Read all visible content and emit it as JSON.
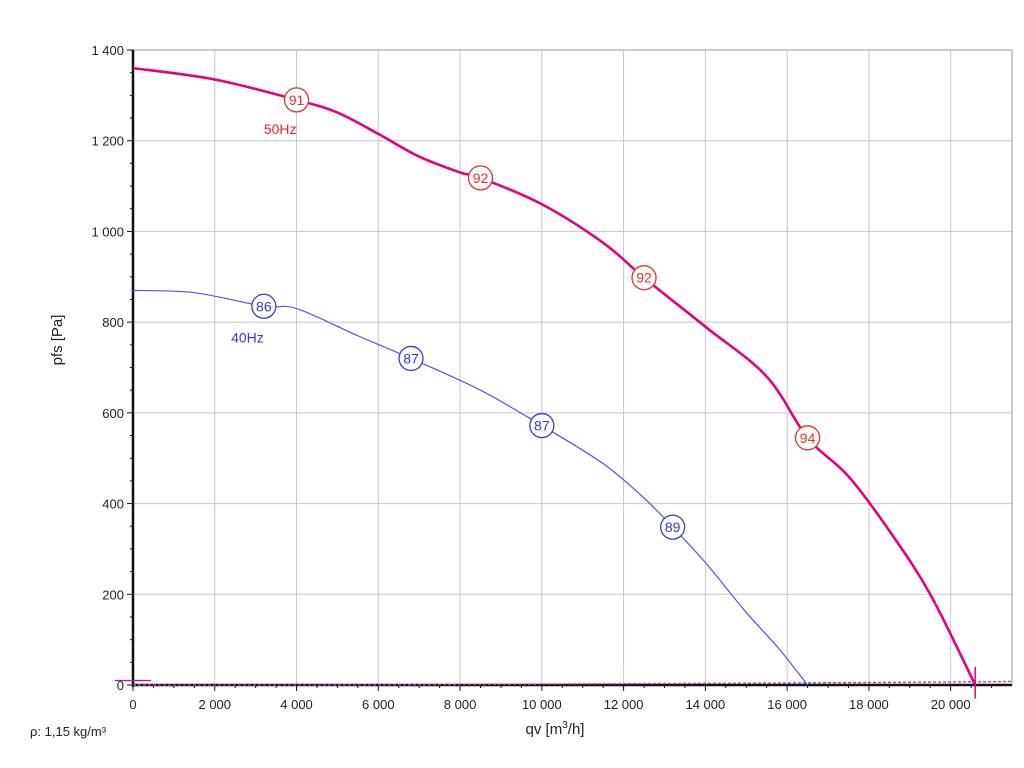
{
  "footer": {
    "density": "ρ: 1,15 kg/m³"
  },
  "chart_data": {
    "type": "line",
    "xlabel_prefix": "qv [m",
    "xlabel_sup": "3",
    "xlabel_suffix": "/h]",
    "ylabel": "pfs [Pa]",
    "xlim": [
      0,
      21500
    ],
    "ylim": [
      0,
      1400
    ],
    "xticks": [
      0,
      2000,
      4000,
      6000,
      8000,
      10000,
      12000,
      14000,
      16000,
      18000,
      20000
    ],
    "xtick_labels": [
      "0",
      "2 000",
      "4 000",
      "6 000",
      "8 000",
      "10 000",
      "12 000",
      "14 000",
      "16 000",
      "18 000",
      "20 000"
    ],
    "yticks": [
      0,
      200,
      400,
      600,
      800,
      1000,
      1200,
      1400
    ],
    "ytick_labels": [
      "0",
      "200",
      "400",
      "600",
      "800",
      "1 000",
      "1 200",
      "1 400"
    ],
    "grid": true,
    "series": [
      {
        "name": "50Hz",
        "color": "#e6007e",
        "x": [
          0,
          2000,
          4000,
          5000,
          6000,
          7000,
          8000,
          8500,
          10000,
          11500,
          12500,
          14000,
          15500,
          16500,
          17500,
          18500,
          19500,
          20600
        ],
        "y": [
          1360,
          1335,
          1290,
          1262,
          1215,
          1165,
          1130,
          1118,
          1060,
          975,
          898,
          790,
          680,
          545,
          460,
          340,
          200,
          0
        ],
        "markers": [
          {
            "x": 4000,
            "y": 1290,
            "label": "91"
          },
          {
            "x": 8500,
            "y": 1118,
            "label": "92"
          },
          {
            "x": 12500,
            "y": 898,
            "label": "92"
          },
          {
            "x": 16500,
            "y": 545,
            "label": "94"
          }
        ]
      },
      {
        "name": "40Hz",
        "color": "#5555dd",
        "x": [
          0,
          1500,
          3200,
          4000,
          5500,
          6800,
          8500,
          10000,
          11500,
          12500,
          13200,
          14000,
          15000,
          15800,
          16500
        ],
        "y": [
          870,
          865,
          835,
          830,
          770,
          720,
          650,
          572,
          488,
          412,
          348,
          270,
          160,
          80,
          0
        ],
        "markers": [
          {
            "x": 3200,
            "y": 835,
            "label": "86"
          },
          {
            "x": 6800,
            "y": 720,
            "label": "87"
          },
          {
            "x": 10000,
            "y": 572,
            "label": "87"
          },
          {
            "x": 13200,
            "y": 348,
            "label": "89"
          }
        ]
      },
      {
        "name": "",
        "color": "#b040b0",
        "x": [
          0,
          5000,
          10000,
          15000,
          20600,
          21500
        ],
        "y": [
          0,
          0,
          2,
          4,
          7,
          8
        ]
      }
    ],
    "series_labels": [
      {
        "text": "50Hz",
        "x": 3200,
        "y": 1215,
        "color": "#e6202e"
      },
      {
        "text": "40Hz",
        "x": 2400,
        "y": 755,
        "color": "#3a3ad0"
      }
    ]
  }
}
